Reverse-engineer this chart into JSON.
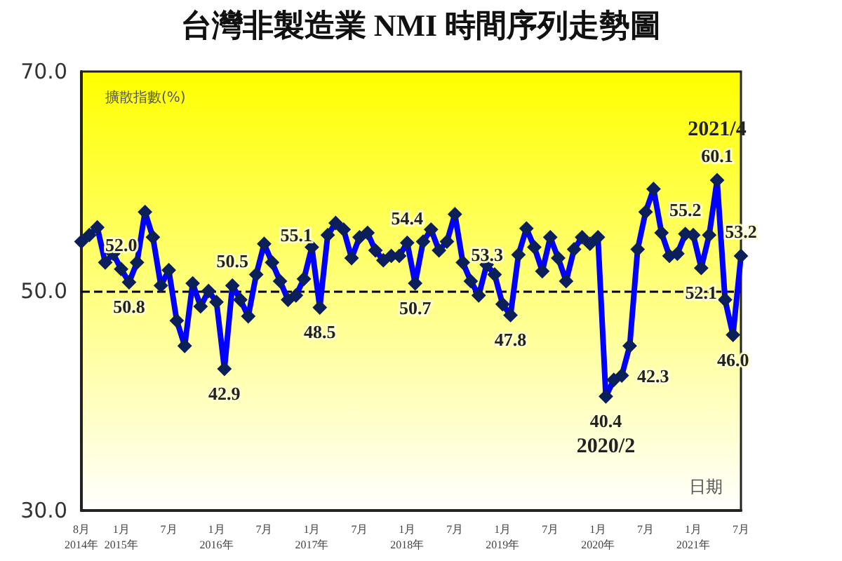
{
  "chart_data": {
    "type": "line",
    "title": "台灣非製造業 NMI 時間序列走勢圖",
    "ylabel": "擴散指數(%)",
    "xlabel": "日期",
    "categories": [
      "8月\n2014年",
      null,
      null,
      null,
      null,
      "1月\n2015年",
      null,
      null,
      null,
      null,
      null,
      "7月",
      null,
      null,
      null,
      null,
      null,
      "1月\n2016年",
      null,
      null,
      null,
      null,
      null,
      "7月",
      null,
      null,
      null,
      null,
      null,
      "1月\n2017年",
      null,
      null,
      null,
      null,
      null,
      "7月",
      null,
      null,
      null,
      null,
      null,
      "1月\n2018年",
      null,
      null,
      null,
      null,
      null,
      "7月",
      null,
      null,
      null,
      null,
      null,
      "1月\n2019年",
      null,
      null,
      null,
      null,
      null,
      "7月",
      null,
      null,
      null,
      null,
      null,
      "1月\n2020年",
      null,
      null,
      null,
      null,
      null,
      "7月",
      null,
      null,
      null,
      null,
      null,
      "1月\n2021年",
      null,
      null,
      null,
      null,
      null,
      "7月"
    ],
    "series": [
      {
        "color": "#0000ff",
        "values": [
          54.5,
          55.1,
          55.8,
          52.6,
          53.4,
          52.0,
          50.8,
          52.6,
          57.2,
          54.9,
          50.5,
          51.9,
          47.3,
          45.0,
          50.7,
          48.6,
          50.0,
          49.0,
          42.9,
          50.5,
          49.2,
          47.7,
          51.5,
          54.3,
          52.6,
          50.9,
          49.2,
          49.6,
          51.1,
          54.0,
          48.5,
          55.1,
          56.2,
          55.6,
          53.0,
          54.9,
          55.3,
          53.7,
          52.8,
          53.2,
          53.2,
          54.4,
          50.7,
          54.5,
          55.6,
          53.7,
          54.5,
          57.0,
          52.6,
          50.9,
          49.6,
          52.4,
          51.5,
          48.8,
          47.8,
          53.3,
          55.7,
          54.0,
          51.8,
          54.9,
          53.0,
          50.9,
          53.8,
          54.9,
          54.3,
          54.9,
          40.4,
          41.9,
          42.3,
          45.0,
          53.8,
          57.2,
          59.3,
          55.3,
          53.2,
          53.4,
          55.2,
          55.1,
          52.1,
          55.1,
          60.1,
          49.2,
          46.0,
          53.2
        ],
        "value_labels": [
          null,
          null,
          null,
          null,
          null,
          "52.0",
          "50.8",
          null,
          null,
          null,
          null,
          null,
          null,
          null,
          null,
          null,
          null,
          null,
          "42.9",
          "50.5",
          null,
          null,
          null,
          null,
          null,
          null,
          null,
          null,
          null,
          null,
          "48.5",
          "55.1",
          null,
          null,
          null,
          null,
          null,
          null,
          null,
          null,
          null,
          "54.4",
          "50.7",
          null,
          null,
          null,
          null,
          null,
          null,
          null,
          null,
          null,
          null,
          null,
          "47.8",
          "53.3",
          null,
          null,
          null,
          null,
          null,
          null,
          null,
          null,
          null,
          null,
          "40.4",
          null,
          "42.3",
          null,
          null,
          null,
          null,
          null,
          null,
          null,
          "55.2",
          null,
          "52.1",
          null,
          "60.1",
          null,
          "46.0",
          "53.2"
        ]
      }
    ],
    "ylim": [
      30,
      70
    ],
    "yticks": [
      {
        "value": 30,
        "label": "30.0"
      },
      {
        "value": 50,
        "label": "50.0"
      },
      {
        "value": 70,
        "label": "70.0"
      }
    ],
    "ref_lines": [
      {
        "axis": "y",
        "value": 50,
        "color": "#000000",
        "line_style": "dashed"
      }
    ],
    "annotations": [
      {
        "text": "2021/4",
        "y": 60.1
      },
      {
        "text": "2020/2",
        "y": 40.4
      }
    ],
    "marker": "diamond",
    "line_style": "solid",
    "grid": false
  }
}
